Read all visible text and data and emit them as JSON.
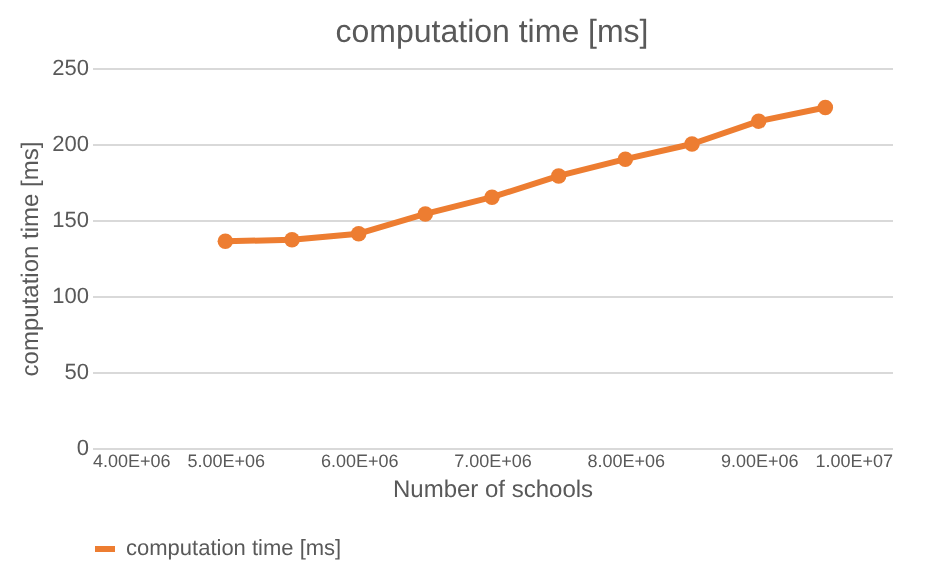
{
  "chart_data": {
    "type": "line",
    "title": "computation time [ms]",
    "xlabel": "Number of schools",
    "ylabel": "computation time [ms]",
    "x": [
      5000000,
      5500000,
      6000000,
      6500000,
      7000000,
      7500000,
      8000000,
      8500000,
      9000000,
      9500000
    ],
    "series": [
      {
        "name": "computation time [ms]",
        "color": "#ed7d31",
        "values": [
          136,
          137,
          141,
          154,
          165,
          179,
          190,
          200,
          215,
          224
        ]
      }
    ],
    "xlim": [
      4000000,
      10000000
    ],
    "xticks": [
      {
        "value": 4000000,
        "label": "4.00E+06"
      },
      {
        "value": 5000000,
        "label": "5.00E+06"
      },
      {
        "value": 6000000,
        "label": "6.00E+06"
      },
      {
        "value": 7000000,
        "label": "7.00E+06"
      },
      {
        "value": 8000000,
        "label": "8.00E+06"
      },
      {
        "value": 9000000,
        "label": "9.00E+06"
      },
      {
        "value": 10000000,
        "label": "1.00E+07"
      }
    ],
    "ylim": [
      0,
      250
    ],
    "yticks": [
      0,
      50,
      100,
      150,
      200,
      250
    ],
    "grid": "y",
    "legend": "bottom",
    "marker": "circle",
    "line_style": "solid"
  }
}
